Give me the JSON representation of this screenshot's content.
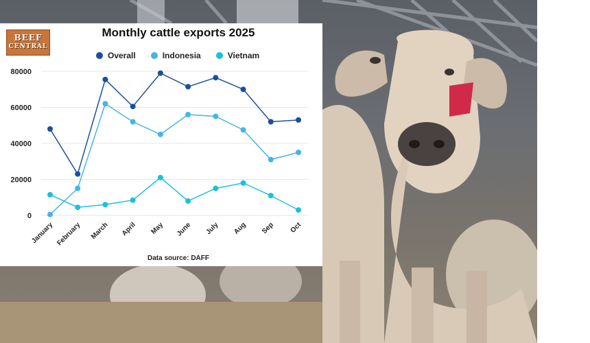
{
  "logo": {
    "line1": "BEEF",
    "line2": "CENTRAL"
  },
  "source": "Data source: DAFF",
  "colors": {
    "overall": "#1a4fa0",
    "indonesia": "#45b4e8",
    "vietnam": "#1cc0dc"
  },
  "chart_data": {
    "type": "line",
    "title": "Monthly cattle exports 2025",
    "xlabel": "",
    "ylabel": "",
    "categories": [
      "January",
      "February",
      "March",
      "April",
      "May",
      "June",
      "July",
      "Aug",
      "Sep",
      "Oct"
    ],
    "ylim": [
      0,
      80000
    ],
    "yticks": [
      0,
      20000,
      40000,
      60000,
      80000
    ],
    "grid": true,
    "legend": "top",
    "series": [
      {
        "name": "Overall",
        "values": [
          48000,
          23000,
          75500,
          60500,
          79000,
          71500,
          76500,
          70000,
          52000,
          53000
        ]
      },
      {
        "name": "Indonesia",
        "values": [
          500,
          15000,
          62000,
          52000,
          45000,
          56000,
          55000,
          47500,
          31000,
          35000
        ]
      },
      {
        "name": "Vietnam",
        "values": [
          11500,
          4500,
          6000,
          8500,
          21000,
          8000,
          15000,
          18000,
          11000,
          3000
        ]
      }
    ]
  }
}
